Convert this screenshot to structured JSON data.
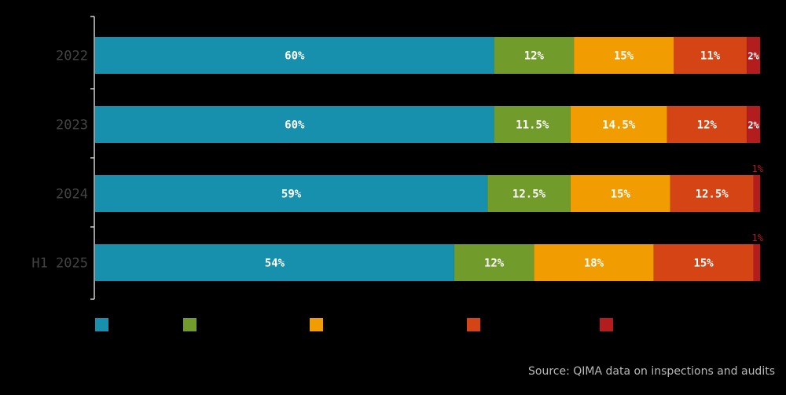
{
  "chart_data": {
    "type": "bar",
    "orientation": "horizontal",
    "stacked": true,
    "categories": [
      "2022",
      "2023",
      "2024",
      "H1 2025"
    ],
    "series": [
      {
        "color": "#1790ad",
        "values": [
          60,
          60,
          59,
          54
        ],
        "labels": [
          "60%",
          "60%",
          "59%",
          "54%"
        ]
      },
      {
        "color": "#719b2b",
        "values": [
          12,
          11.5,
          12.5,
          12
        ],
        "labels": [
          "12%",
          "11.5%",
          "12.5%",
          "12%"
        ]
      },
      {
        "color": "#f19c00",
        "values": [
          15,
          14.5,
          15,
          18
        ],
        "labels": [
          "15%",
          "14.5%",
          "15%",
          "18%"
        ]
      },
      {
        "color": "#d44414",
        "values": [
          11,
          12,
          12.5,
          15
        ],
        "labels": [
          "11%",
          "12%",
          "12.5%",
          "15%"
        ]
      },
      {
        "color": "#b31d1d",
        "values": [
          2,
          2,
          1,
          1
        ],
        "labels": [
          "2%",
          "2%",
          "1%",
          "1%"
        ]
      }
    ],
    "xlim": [
      0,
      100
    ],
    "grid": false,
    "legend": "bottom-left"
  },
  "source": "Source: QIMA data on inspections and audits",
  "colors": {
    "background": "#000000",
    "axis": "#cfcfcf",
    "category_text": "#444444",
    "bar_label": "#ffffff",
    "outside_label": "#b31d1d"
  }
}
